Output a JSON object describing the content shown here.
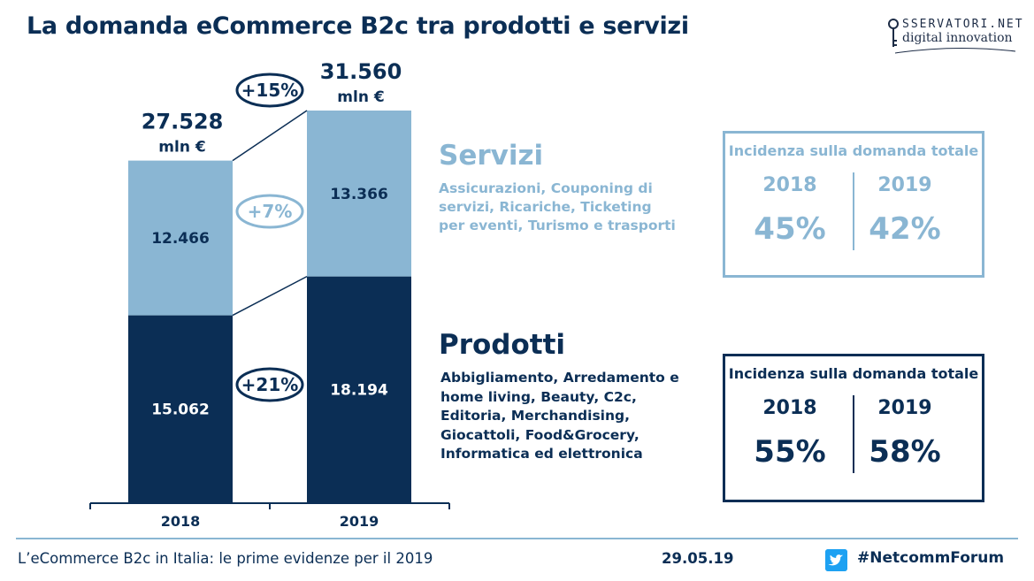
{
  "title": "La domanda eCommerce B2c tra prodotti e servizi",
  "logo": {
    "line1": "SSERVATORI.NET",
    "line2": "digital innovation"
  },
  "chart_data": {
    "type": "bar",
    "stacked": true,
    "categories": [
      "2018",
      "2019"
    ],
    "series": [
      {
        "name": "Prodotti",
        "values": [
          15062,
          18194
        ],
        "labels": [
          "15.062",
          "18.194"
        ],
        "color": "#0b2e55"
      },
      {
        "name": "Servizi",
        "values": [
          12466,
          13366
        ],
        "labels": [
          "12.466",
          "13.366"
        ],
        "color": "#8ab6d3"
      }
    ],
    "totals": [
      {
        "value": 27528,
        "label": "27.528",
        "unit": "mln €"
      },
      {
        "value": 31560,
        "label": "31.560",
        "unit": "mln €"
      }
    ],
    "growth": {
      "total": "+15%",
      "servizi": "+7%",
      "prodotti": "+21%"
    },
    "ylim": [
      0,
      31560
    ]
  },
  "servizi": {
    "title": "Servizi",
    "description": "Assicurazioni, Couponing di servizi, Ricariche, Ticketing per eventi, Turismo e trasporti"
  },
  "prodotti": {
    "title": "Prodotti",
    "description": "Abbigliamento, Arredamento e home living, Beauty, C2c, Editoria, Merchandising, Giocattoli, Food&Grocery, Informatica ed elettronica"
  },
  "incidenza_servizi": {
    "heading": "Incidenza sulla domanda totale",
    "year1": "2018",
    "value1": "45%",
    "year2": "2019",
    "value2": "42%"
  },
  "incidenza_prodotti": {
    "heading": "Incidenza sulla domanda totale",
    "year1": "2018",
    "value1": "55%",
    "year2": "2019",
    "value2": "58%"
  },
  "footer": {
    "subtitle": "L’eCommerce B2c in Italia: le prime evidenze per il 2019",
    "date": "29.05.19",
    "hashtag": "#NetcommForum"
  },
  "colors": {
    "dark": "#0b2e55",
    "light": "#8ab6d3"
  }
}
